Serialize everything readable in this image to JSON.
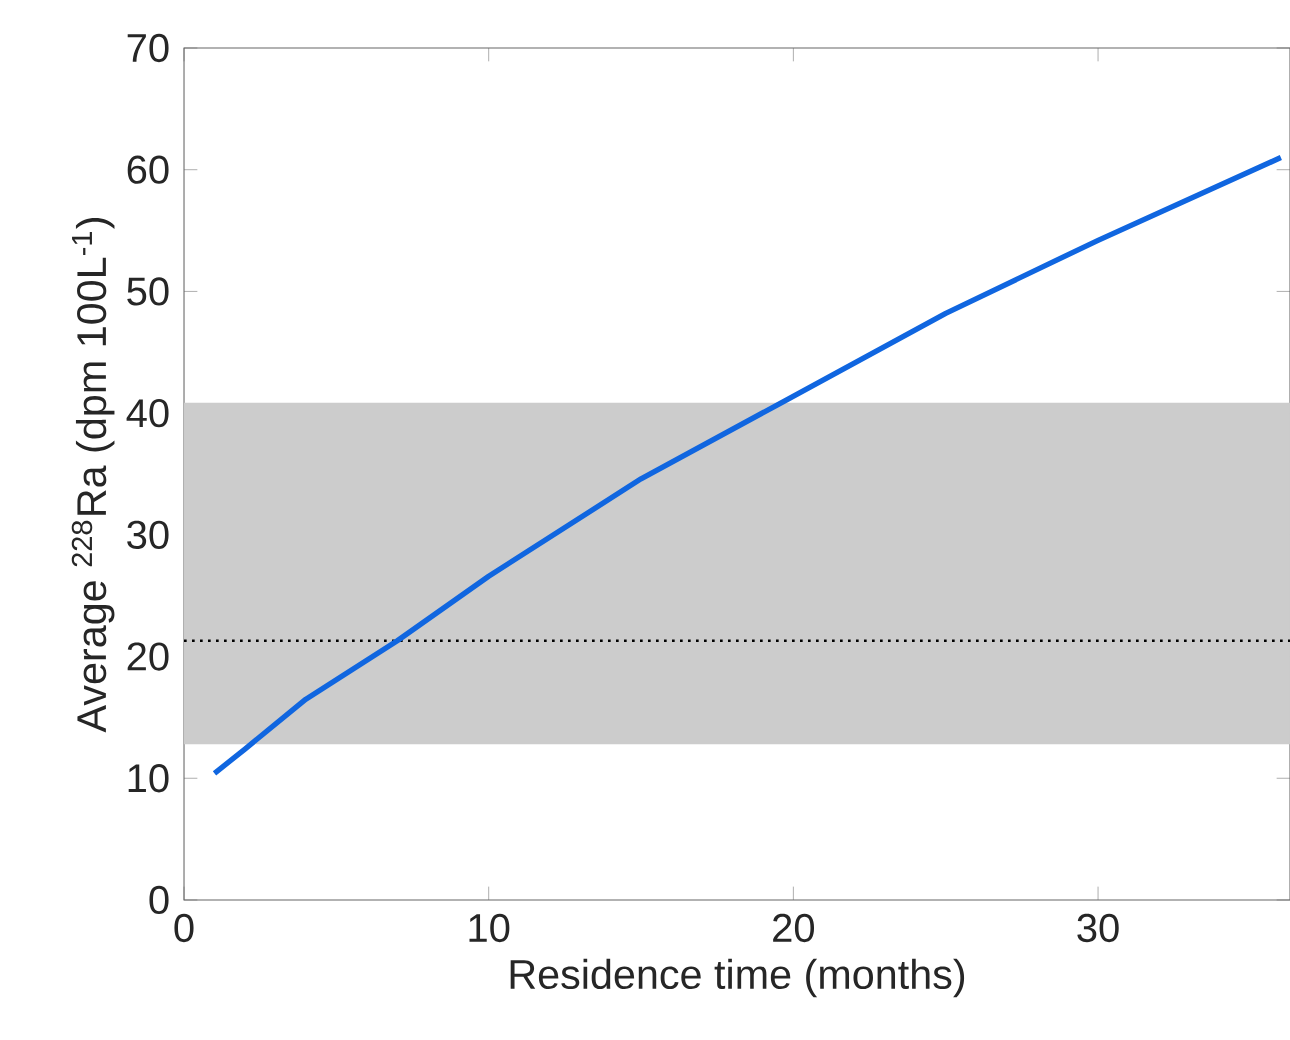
{
  "chart_data": {
    "type": "line",
    "xlabel": "Residence time (months)",
    "ylabel": "Average $^{228}$Ra (dpm 100L$^{-1}$)",
    "xlim": [
      0,
      36.3
    ],
    "ylim": [
      0,
      70
    ],
    "xticks": [
      0,
      10,
      20,
      30
    ],
    "yticks": [
      0,
      10,
      20,
      30,
      40,
      50,
      60,
      70
    ],
    "grid": false,
    "line_style": "solid",
    "marker": "none",
    "series": [
      {
        "color": "#1066e0",
        "x": [
          1,
          2,
          4,
          7,
          10,
          15,
          19.6,
          25,
          30,
          36
        ],
        "values": [
          10.4,
          12.4,
          16.5,
          21.3,
          26.6,
          34.6,
          40.85,
          48.2,
          54.2,
          61.0
        ]
      }
    ],
    "bands": [
      {
        "axis": "y",
        "from": 12.8,
        "to": 40.85,
        "color": "#cccccc"
      }
    ],
    "ref_lines": [
      {
        "axis": "y",
        "value": 21.3,
        "color": "#000000",
        "line_style": "dotted"
      }
    ]
  }
}
